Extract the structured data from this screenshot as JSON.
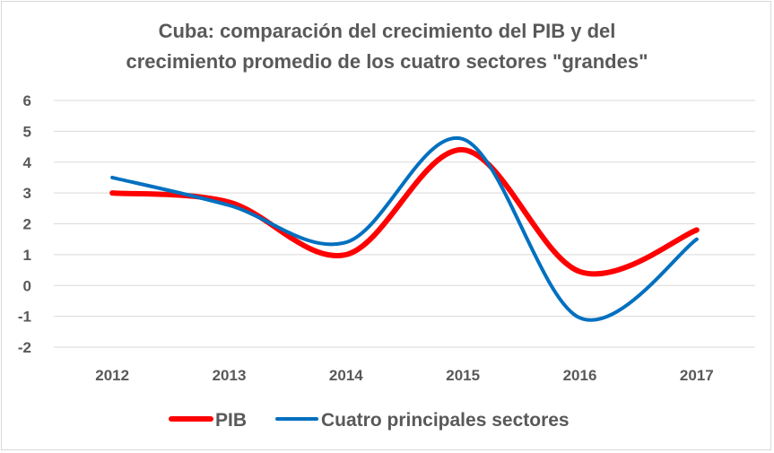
{
  "chart_data": {
    "type": "line",
    "title_lines": [
      "Cuba: comparación del crecimiento del PIB y del",
      "crecimiento promedio de los cuatro sectores \"grandes\""
    ],
    "categories": [
      "2012",
      "2013",
      "2014",
      "2015",
      "2016",
      "2017"
    ],
    "series": [
      {
        "name": "PIB",
        "color": "#ff0000",
        "values": [
          3.0,
          2.7,
          1.0,
          4.4,
          0.45,
          1.8
        ]
      },
      {
        "name": "Cuatro principales sectores",
        "color": "#0070c0",
        "values": [
          3.5,
          2.6,
          1.4,
          4.75,
          -1.05,
          1.5
        ]
      }
    ],
    "y_ticks": [
      "6",
      "5",
      "4",
      "3",
      "2",
      "1",
      "0",
      "-1",
      "-2"
    ],
    "ylim": [
      -2,
      6
    ],
    "grid": true,
    "legend_position": "bottom",
    "xlabel": "",
    "ylabel": ""
  }
}
